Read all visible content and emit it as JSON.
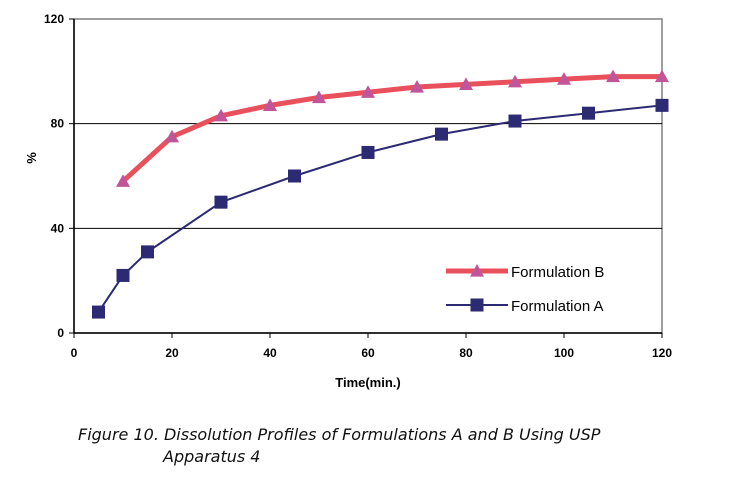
{
  "chart_data": {
    "type": "line",
    "title": "",
    "xlabel": "Time(min.)",
    "ylabel": "%",
    "xlim": [
      0,
      120
    ],
    "ylim": [
      0,
      120
    ],
    "xticks": [
      "0",
      "20",
      "40",
      "60",
      "80",
      "100",
      "120"
    ],
    "yticks": [
      "0",
      "40",
      "80",
      "120"
    ],
    "grid": "horizontal",
    "legend": "bottom-right",
    "series": [
      {
        "name": "Formulation B",
        "color": "#e8505b",
        "marker_color": "#c0559a",
        "marker": "triangle",
        "x": [
          10,
          20,
          30,
          40,
          50,
          60,
          70,
          80,
          90,
          100,
          110,
          120
        ],
        "y": [
          58,
          75,
          83,
          87,
          90,
          92,
          94,
          95,
          96,
          97,
          98,
          98
        ]
      },
      {
        "name": "Formulation A",
        "color": "#2b2a72",
        "marker_color": "#2b2a72",
        "marker": "square",
        "x": [
          5,
          10,
          15,
          30,
          45,
          60,
          75,
          90,
          105,
          120
        ],
        "y": [
          8,
          22,
          31,
          50,
          60,
          69,
          76,
          81,
          84,
          87
        ]
      }
    ]
  },
  "caption": {
    "line1": "Figure 10.  Dissolution Profiles of Formulations A and B Using USP",
    "line2": "Apparatus 4"
  }
}
